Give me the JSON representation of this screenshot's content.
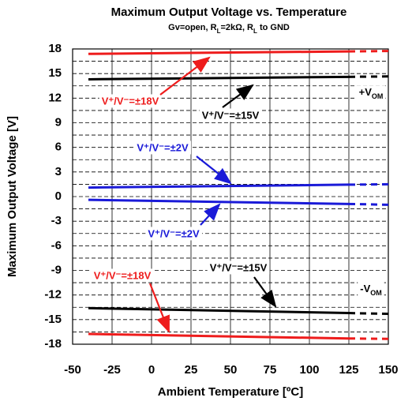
{
  "chart_data": {
    "type": "line",
    "title": "Maximum Output Voltage vs. Temperature",
    "subtitle": [
      {
        "text": "Gv=open, R",
        "sub": false
      },
      {
        "text": "L",
        "sub": true
      },
      {
        "text": "=2kΩ, R",
        "sub": false
      },
      {
        "text": "L",
        "sub": true
      },
      {
        "text": " to GND",
        "sub": false
      }
    ],
    "x_label": "Ambient Temperature [ºC]",
    "y_label": "Maximum Output Voltage [V]",
    "xlim": [
      -50,
      150
    ],
    "xticks": [
      -50,
      -25,
      0,
      25,
      50,
      75,
      100,
      125,
      150
    ],
    "ylim": [
      -18,
      18
    ],
    "yticks": [
      -18,
      -15,
      -12,
      -9,
      -6,
      -3,
      0,
      3,
      6,
      9,
      12,
      15,
      18
    ],
    "y_minor_grid": [
      -16.5,
      -13.5,
      -10.5,
      -7.5,
      -4.5,
      -1.5,
      1.5,
      4.5,
      7.5,
      10.5,
      13.5,
      16.5
    ],
    "grid": true,
    "dash_last_segment": true,
    "series": [
      {
        "name": "V⁺/V⁻=±18V +VOM",
        "color": "#ee1c1c",
        "x": [
          -40,
          125,
          150
        ],
        "values": [
          17.4,
          17.7,
          17.75
        ]
      },
      {
        "name": "V⁺/V⁻=±15V +VOM",
        "color": "#000000",
        "x": [
          -40,
          125,
          150
        ],
        "values": [
          14.3,
          14.6,
          14.65
        ]
      },
      {
        "name": "V⁺/V⁻=±2V +VOM",
        "color": "#1a1ad8",
        "x": [
          -40,
          125,
          150
        ],
        "values": [
          1.1,
          1.45,
          1.5
        ]
      },
      {
        "name": "V⁺/V⁻=±2V -VOM",
        "color": "#1a1ad8",
        "x": [
          -40,
          125,
          150
        ],
        "values": [
          -0.4,
          -0.9,
          -1.0
        ]
      },
      {
        "name": "V⁺/V⁻=±15V -VOM",
        "color": "#000000",
        "x": [
          -40,
          125,
          150
        ],
        "values": [
          -13.6,
          -14.2,
          -14.3
        ]
      },
      {
        "name": "V⁺/V⁻=±18V -VOM",
        "color": "#ee1c1c",
        "x": [
          -40,
          125,
          150
        ],
        "values": [
          -16.75,
          -17.3,
          -17.35
        ]
      }
    ],
    "annotations": [
      {
        "text": "V⁺/V⁻=±18V",
        "color": "#ee1c1c"
      },
      {
        "text": "V⁺/V⁻=±15V",
        "color": "#000000"
      },
      {
        "text": "V⁺/V⁻=±2V",
        "color": "#1a1ad8"
      },
      {
        "text": "V⁺/V⁻=±2V",
        "color": "#1a1ad8"
      },
      {
        "text": "V⁺/V⁻=±15V",
        "color": "#000000"
      },
      {
        "text": "V⁺/V⁻=±18V",
        "color": "#ee1c1c"
      }
    ],
    "region_labels": [
      {
        "main": "+V",
        "sub": "OM"
      },
      {
        "main": "-V",
        "sub": "OM"
      }
    ]
  }
}
